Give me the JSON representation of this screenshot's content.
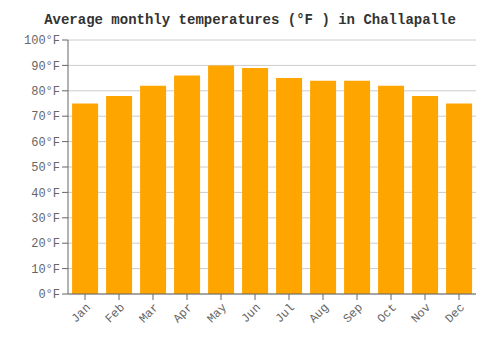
{
  "chart_data": {
    "type": "bar",
    "title": "Average monthly temperatures (°F ) in Challapalle",
    "categories": [
      "Jan",
      "Feb",
      "Mar",
      "Apr",
      "May",
      "Jun",
      "Jul",
      "Aug",
      "Sep",
      "Oct",
      "Nov",
      "Dec"
    ],
    "values": [
      75,
      78,
      82,
      86,
      90,
      89,
      85,
      84,
      84,
      82,
      78,
      75
    ],
    "color": "#FFA500",
    "ylim": [
      0,
      100
    ],
    "yticks": [
      {
        "value": 0,
        "label": "0°F"
      },
      {
        "value": 10,
        "label": "10°F"
      },
      {
        "value": 20,
        "label": "20°F"
      },
      {
        "value": 30,
        "label": "30°F"
      },
      {
        "value": 40,
        "label": "40°F"
      },
      {
        "value": 50,
        "label": "50°F"
      },
      {
        "value": 60,
        "label": "60°F"
      },
      {
        "value": 70,
        "label": "70°F"
      },
      {
        "value": 80,
        "label": "80°F"
      },
      {
        "value": 90,
        "label": "90°F"
      },
      {
        "value": 100,
        "label": "100°F"
      }
    ],
    "grid": true
  }
}
